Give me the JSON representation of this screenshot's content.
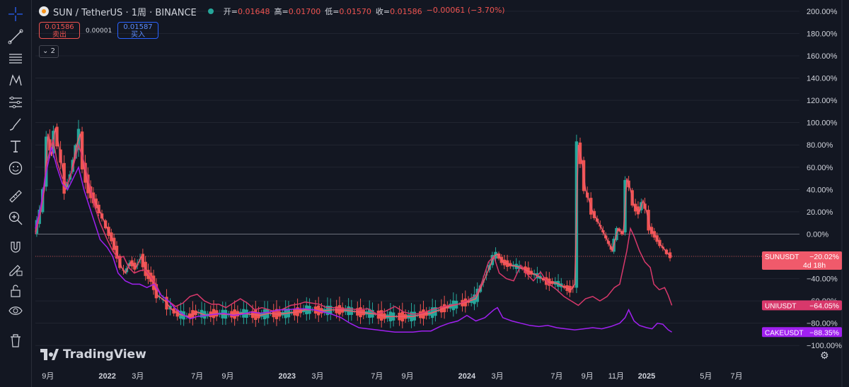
{
  "header": {
    "symbol": "SUN / TetherUS · 1周 · BINANCE",
    "open_label": "开=",
    "open": "0.01648",
    "high_label": "高=",
    "high": "0.01700",
    "low_label": "低=",
    "low": "0.01570",
    "close_label": "收=",
    "close": "0.01586",
    "change": "−0.00061 (−3.70%)"
  },
  "trade": {
    "sell_price": "0.01586",
    "sell_label": "卖出",
    "spread": "0.00001",
    "buy_price": "0.01587",
    "buy_label": "买入"
  },
  "collapse_label": "2",
  "logo_text": "TradingView",
  "icons": [
    "crosshair-icon",
    "trendline-icon",
    "fib-icon",
    "pattern-icon",
    "measure-icon",
    "brush-icon",
    "text-icon",
    "emoji-icon",
    "ruler-icon",
    "zoom-icon",
    "magnet-icon",
    "lock-draw-icon",
    "lock-icon",
    "eye-icon",
    "trash-icon"
  ],
  "colors": {
    "up": "#26a69a",
    "down": "#ef5350",
    "sun": "#f05a6b",
    "uni": "#d8386b",
    "cake": "#a020f0",
    "grid": "#2a2e39",
    "zero": "#787b86"
  },
  "chart_data": {
    "type": "line",
    "y_unit": "%",
    "ylim": [
      -110,
      205
    ],
    "y_ticks": [
      "200.00%",
      "180.00%",
      "160.00%",
      "140.00%",
      "120.00%",
      "100.00%",
      "80.00%",
      "60.00%",
      "40.00%",
      "20.00%",
      "0.00%",
      "−20.00%",
      "−40.00%",
      "−60.00%",
      "−80.00%",
      "−100.00%"
    ],
    "y_tick_values": [
      200,
      180,
      160,
      140,
      120,
      100,
      80,
      60,
      40,
      20,
      0,
      -20,
      -40,
      -60,
      -80,
      -100
    ],
    "x_ticks": [
      "9月",
      "2022",
      "3月",
      "7月",
      "9月",
      "2023",
      "3月",
      "7月",
      "9月",
      "2024",
      "3月",
      "7月",
      "9月",
      "11月",
      "2025",
      "5月",
      "7月"
    ],
    "x_tick_times": [
      2021.67,
      2022.0,
      2022.17,
      2022.5,
      2022.67,
      2023.0,
      2023.17,
      2023.5,
      2023.67,
      2024.0,
      2024.17,
      2024.5,
      2024.67,
      2024.83,
      2025.0,
      2025.33,
      2025.5
    ],
    "x_range": [
      2021.6,
      2025.85
    ],
    "series": [
      {
        "name": "SUNUSDT",
        "label": "SUNUSDT",
        "value_label": "−20.02%",
        "countdown": "4d 18h",
        "color": "#f05a6b",
        "points": [
          [
            2021.6,
            2
          ],
          [
            2021.63,
            20
          ],
          [
            2021.65,
            40
          ],
          [
            2021.67,
            90
          ],
          [
            2021.69,
            70
          ],
          [
            2021.71,
            95
          ],
          [
            2021.73,
            80
          ],
          [
            2021.75,
            60
          ],
          [
            2021.77,
            40
          ],
          [
            2021.8,
            55
          ],
          [
            2021.83,
            80
          ],
          [
            2021.85,
            90
          ],
          [
            2021.87,
            60
          ],
          [
            2021.9,
            40
          ],
          [
            2021.93,
            30
          ],
          [
            2021.96,
            20
          ],
          [
            2022.0,
            5
          ],
          [
            2022.03,
            -5
          ],
          [
            2022.06,
            -20
          ],
          [
            2022.08,
            -30
          ],
          [
            2022.1,
            -35
          ],
          [
            2022.13,
            -25
          ],
          [
            2022.16,
            -30
          ],
          [
            2022.19,
            -20
          ],
          [
            2022.22,
            -35
          ],
          [
            2022.25,
            -40
          ],
          [
            2022.28,
            -55
          ],
          [
            2022.32,
            -60
          ],
          [
            2022.36,
            -68
          ],
          [
            2022.4,
            -72
          ],
          [
            2022.45,
            -74
          ],
          [
            2022.5,
            -70
          ],
          [
            2022.55,
            -73
          ],
          [
            2022.6,
            -71
          ],
          [
            2022.65,
            -72
          ],
          [
            2022.7,
            -72
          ],
          [
            2022.75,
            -71
          ],
          [
            2022.8,
            -72
          ],
          [
            2022.85,
            -73
          ],
          [
            2022.9,
            -71
          ],
          [
            2022.95,
            -72
          ],
          [
            2023.0,
            -71
          ],
          [
            2023.05,
            -70
          ],
          [
            2023.1,
            -68
          ],
          [
            2023.15,
            -68
          ],
          [
            2023.2,
            -69
          ],
          [
            2023.25,
            -68
          ],
          [
            2023.3,
            -68
          ],
          [
            2023.35,
            -69
          ],
          [
            2023.4,
            -70
          ],
          [
            2023.45,
            -71
          ],
          [
            2023.5,
            -72
          ],
          [
            2023.55,
            -74
          ],
          [
            2023.6,
            -74
          ],
          [
            2023.65,
            -74
          ],
          [
            2023.7,
            -74
          ],
          [
            2023.75,
            -72
          ],
          [
            2023.8,
            -71
          ],
          [
            2023.85,
            -68
          ],
          [
            2023.9,
            -65
          ],
          [
            2023.95,
            -63
          ],
          [
            2024.0,
            -61
          ],
          [
            2024.05,
            -58
          ],
          [
            2024.1,
            -40
          ],
          [
            2024.15,
            -20
          ],
          [
            2024.17,
            -18
          ],
          [
            2024.2,
            -25
          ],
          [
            2024.25,
            -28
          ],
          [
            2024.3,
            -30
          ],
          [
            2024.35,
            -34
          ],
          [
            2024.4,
            -38
          ],
          [
            2024.45,
            -43
          ],
          [
            2024.5,
            -44
          ],
          [
            2024.55,
            -48
          ],
          [
            2024.58,
            -50
          ],
          [
            2024.6,
            -45
          ],
          [
            2024.62,
            80
          ],
          [
            2024.64,
            65
          ],
          [
            2024.66,
            40
          ],
          [
            2024.7,
            20
          ],
          [
            2024.75,
            5
          ],
          [
            2024.78,
            -5
          ],
          [
            2024.81,
            -15
          ],
          [
            2024.84,
            5
          ],
          [
            2024.87,
            0
          ],
          [
            2024.89,
            50
          ],
          [
            2024.91,
            40
          ],
          [
            2024.93,
            25
          ],
          [
            2024.96,
            20
          ],
          [
            2024.98,
            30
          ],
          [
            2025.0,
            20
          ],
          [
            2025.02,
            5
          ],
          [
            2025.05,
            -2
          ],
          [
            2025.08,
            -10
          ],
          [
            2025.1,
            -14
          ],
          [
            2025.12,
            -18
          ],
          [
            2025.14,
            -20
          ]
        ]
      },
      {
        "name": "UNIUSDT",
        "label": "UNIUSDT",
        "value_label": "−64.05%",
        "color": "#d8386b",
        "points": [
          [
            2021.6,
            0
          ],
          [
            2021.63,
            20
          ],
          [
            2021.66,
            60
          ],
          [
            2021.68,
            75
          ],
          [
            2021.7,
            85
          ],
          [
            2021.72,
            65
          ],
          [
            2021.75,
            50
          ],
          [
            2021.78,
            45
          ],
          [
            2021.81,
            60
          ],
          [
            2021.84,
            80
          ],
          [
            2021.87,
            65
          ],
          [
            2021.9,
            45
          ],
          [
            2021.93,
            25
          ],
          [
            2021.96,
            10
          ],
          [
            2022.0,
            -5
          ],
          [
            2022.03,
            -15
          ],
          [
            2022.06,
            -22
          ],
          [
            2022.09,
            -20
          ],
          [
            2022.12,
            -30
          ],
          [
            2022.15,
            -35
          ],
          [
            2022.18,
            -33
          ],
          [
            2022.21,
            -32
          ],
          [
            2022.24,
            -38
          ],
          [
            2022.27,
            -45
          ],
          [
            2022.3,
            -55
          ],
          [
            2022.34,
            -60
          ],
          [
            2022.38,
            -65
          ],
          [
            2022.42,
            -62
          ],
          [
            2022.46,
            -56
          ],
          [
            2022.5,
            -54
          ],
          [
            2022.54,
            -60
          ],
          [
            2022.58,
            -63
          ],
          [
            2022.62,
            -63
          ],
          [
            2022.66,
            -66
          ],
          [
            2022.7,
            -62
          ],
          [
            2022.74,
            -58
          ],
          [
            2022.78,
            -62
          ],
          [
            2022.82,
            -68
          ],
          [
            2022.86,
            -66
          ],
          [
            2022.9,
            -68
          ],
          [
            2022.94,
            -70
          ],
          [
            2022.98,
            -67
          ],
          [
            2023.02,
            -64
          ],
          [
            2023.06,
            -63
          ],
          [
            2023.1,
            -61
          ],
          [
            2023.14,
            -62
          ],
          [
            2023.18,
            -63
          ],
          [
            2023.22,
            -66
          ],
          [
            2023.26,
            -66
          ],
          [
            2023.3,
            -67
          ],
          [
            2023.35,
            -67
          ],
          [
            2023.4,
            -68
          ],
          [
            2023.45,
            -67
          ],
          [
            2023.5,
            -72
          ],
          [
            2023.55,
            -69
          ],
          [
            2023.6,
            -65
          ],
          [
            2023.65,
            -70
          ],
          [
            2023.7,
            -72
          ],
          [
            2023.75,
            -71
          ],
          [
            2023.8,
            -68
          ],
          [
            2023.85,
            -66
          ],
          [
            2023.9,
            -64
          ],
          [
            2023.95,
            -63
          ],
          [
            2024.0,
            -60
          ],
          [
            2024.05,
            -55
          ],
          [
            2024.08,
            -45
          ],
          [
            2024.12,
            -25
          ],
          [
            2024.15,
            -20
          ],
          [
            2024.18,
            -35
          ],
          [
            2024.22,
            -40
          ],
          [
            2024.26,
            -42
          ],
          [
            2024.3,
            -28
          ],
          [
            2024.33,
            -35
          ],
          [
            2024.37,
            -42
          ],
          [
            2024.41,
            -34
          ],
          [
            2024.45,
            -44
          ],
          [
            2024.5,
            -50
          ],
          [
            2024.54,
            -56
          ],
          [
            2024.58,
            -60
          ],
          [
            2024.62,
            -64
          ],
          [
            2024.66,
            -58
          ],
          [
            2024.7,
            -56
          ],
          [
            2024.74,
            -60
          ],
          [
            2024.78,
            -56
          ],
          [
            2024.82,
            -48
          ],
          [
            2024.85,
            -45
          ],
          [
            2024.87,
            -30
          ],
          [
            2024.89,
            -15
          ],
          [
            2024.91,
            5
          ],
          [
            2024.93,
            -2
          ],
          [
            2024.96,
            -15
          ],
          [
            2024.99,
            -25
          ],
          [
            2025.02,
            -30
          ],
          [
            2025.04,
            -45
          ],
          [
            2025.07,
            -50
          ],
          [
            2025.1,
            -48
          ],
          [
            2025.12,
            -55
          ],
          [
            2025.14,
            -64
          ]
        ]
      },
      {
        "name": "CAKEUSDT",
        "label": "CAKEUSDT",
        "value_label": "−88.35%",
        "color": "#a020f0",
        "points": [
          [
            2021.6,
            5
          ],
          [
            2021.63,
            25
          ],
          [
            2021.66,
            55
          ],
          [
            2021.69,
            78
          ],
          [
            2021.72,
            60
          ],
          [
            2021.75,
            45
          ],
          [
            2021.78,
            40
          ],
          [
            2021.81,
            50
          ],
          [
            2021.84,
            60
          ],
          [
            2021.87,
            40
          ],
          [
            2021.9,
            25
          ],
          [
            2021.93,
            10
          ],
          [
            2021.96,
            -5
          ],
          [
            2022.0,
            -12
          ],
          [
            2022.03,
            -20
          ],
          [
            2022.06,
            -35
          ],
          [
            2022.1,
            -42
          ],
          [
            2022.14,
            -45
          ],
          [
            2022.18,
            -45
          ],
          [
            2022.22,
            -48
          ],
          [
            2022.26,
            -45
          ],
          [
            2022.3,
            -55
          ],
          [
            2022.34,
            -60
          ],
          [
            2022.38,
            -67
          ],
          [
            2022.42,
            -72
          ],
          [
            2022.46,
            -76
          ],
          [
            2022.5,
            -74
          ],
          [
            2022.55,
            -73
          ],
          [
            2022.6,
            -72
          ],
          [
            2022.65,
            -71
          ],
          [
            2022.7,
            -73
          ],
          [
            2022.75,
            -72
          ],
          [
            2022.8,
            -70
          ],
          [
            2022.85,
            -71
          ],
          [
            2022.9,
            -70
          ],
          [
            2022.95,
            -68
          ],
          [
            2023.0,
            -68
          ],
          [
            2023.05,
            -67
          ],
          [
            2023.1,
            -67
          ],
          [
            2023.15,
            -68
          ],
          [
            2023.2,
            -70
          ],
          [
            2023.25,
            -72
          ],
          [
            2023.3,
            -75
          ],
          [
            2023.35,
            -80
          ],
          [
            2023.4,
            -84
          ],
          [
            2023.45,
            -85
          ],
          [
            2023.5,
            -86
          ],
          [
            2023.55,
            -87
          ],
          [
            2023.6,
            -88
          ],
          [
            2023.65,
            -88
          ],
          [
            2023.7,
            -88
          ],
          [
            2023.75,
            -87
          ],
          [
            2023.8,
            -87
          ],
          [
            2023.85,
            -83
          ],
          [
            2023.9,
            -80
          ],
          [
            2023.95,
            -78
          ],
          [
            2024.0,
            -73
          ],
          [
            2024.05,
            -78
          ],
          [
            2024.1,
            -75
          ],
          [
            2024.15,
            -68
          ],
          [
            2024.17,
            -66
          ],
          [
            2024.2,
            -75
          ],
          [
            2024.25,
            -78
          ],
          [
            2024.3,
            -80
          ],
          [
            2024.35,
            -82
          ],
          [
            2024.4,
            -83
          ],
          [
            2024.45,
            -82
          ],
          [
            2024.5,
            -84
          ],
          [
            2024.55,
            -85
          ],
          [
            2024.6,
            -86
          ],
          [
            2024.65,
            -85
          ],
          [
            2024.7,
            -84
          ],
          [
            2024.75,
            -85
          ],
          [
            2024.8,
            -83
          ],
          [
            2024.85,
            -80
          ],
          [
            2024.88,
            -75
          ],
          [
            2024.9,
            -68
          ],
          [
            2024.93,
            -78
          ],
          [
            2024.96,
            -82
          ],
          [
            2025.0,
            -84
          ],
          [
            2025.03,
            -85
          ],
          [
            2025.06,
            -80
          ],
          [
            2025.09,
            -81
          ],
          [
            2025.12,
            -86
          ],
          [
            2025.14,
            -88
          ]
        ]
      }
    ],
    "candles_sample": "weekly SUN/USDT candles rendered from SUNUSDT series"
  }
}
